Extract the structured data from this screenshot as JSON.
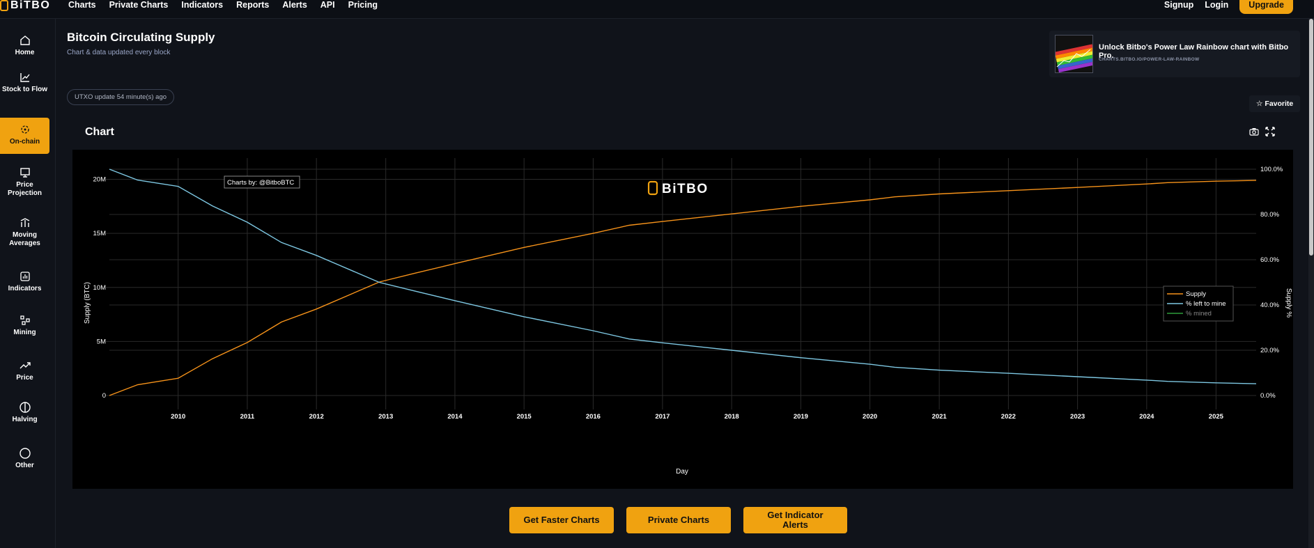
{
  "brand": {
    "name": "BiTBO",
    "accent": "#f0a210"
  },
  "nav": {
    "items": [
      "Charts",
      "Private Charts",
      "Indicators",
      "Reports",
      "Alerts",
      "API",
      "Pricing"
    ]
  },
  "auth": {
    "signup": "Signup",
    "login": "Login",
    "upgrade": "Upgrade"
  },
  "sidebar": {
    "items": [
      {
        "label": "Home",
        "icon": "home-icon"
      },
      {
        "label": "Stock to Flow",
        "icon": "line-chart-icon"
      },
      {
        "label": "On-chain",
        "icon": "network-icon",
        "active": true
      },
      {
        "label": "Price Projection",
        "icon": "presentation-icon"
      },
      {
        "label": "Moving Averages",
        "icon": "moving-averages-icon"
      },
      {
        "label": "Indicators",
        "icon": "bar-chart-icon"
      },
      {
        "label": "Mining",
        "icon": "mining-icon"
      },
      {
        "label": "Price",
        "icon": "trending-up-icon"
      },
      {
        "label": "Halving",
        "icon": "halving-icon"
      },
      {
        "label": "Other",
        "icon": "circle-icon"
      }
    ]
  },
  "page": {
    "title": "Bitcoin Circulating Supply",
    "subtitle": "Chart & data updated every block",
    "utxo_status": "UTXO update 54 minute(s) ago",
    "favorite": "Favorite",
    "chart_heading": "Chart"
  },
  "promo": {
    "headline": "Unlock Bitbo's Power Law Rainbow chart with Bitbo Pro.",
    "url": "CHARTS.BITBO.IO/POWER-LAW-RAINBOW"
  },
  "cta": {
    "faster": "Get Faster Charts",
    "private": "Private Charts",
    "alerts": "Get Indicator Alerts"
  },
  "chart_data": {
    "type": "line",
    "credit": "Charts by: @BitboBTC",
    "watermark": "BiTBO",
    "xlabel": "Day",
    "ylabel": "Supply (BTC)",
    "y2label": "Supply %",
    "xlim": [
      "2009-01-03",
      "2025-08-01"
    ],
    "ylim": [
      0,
      21000000
    ],
    "y2lim": [
      0,
      100
    ],
    "x_ticks": [
      "2010",
      "2011",
      "2012",
      "2013",
      "2014",
      "2015",
      "2016",
      "2017",
      "2018",
      "2019",
      "2020",
      "2021",
      "2022",
      "2023",
      "2024",
      "2025"
    ],
    "y_ticks": [
      {
        "v": 0,
        "l": "0"
      },
      {
        "v": 5000000,
        "l": "5M"
      },
      {
        "v": 10000000,
        "l": "10M"
      },
      {
        "v": 15000000,
        "l": "15M"
      },
      {
        "v": 20000000,
        "l": "20M"
      }
    ],
    "y2_ticks": [
      {
        "v": 0,
        "l": "0.0%"
      },
      {
        "v": 20,
        "l": "20.0%"
      },
      {
        "v": 40,
        "l": "40.0%"
      },
      {
        "v": 60,
        "l": "60.0%"
      },
      {
        "v": 80,
        "l": "80.0%"
      },
      {
        "v": 100,
        "l": "100.0%"
      }
    ],
    "legend_position": "right",
    "grid": true,
    "series": [
      {
        "name": "Supply",
        "axis": "left",
        "color": "#f7931a",
        "x": [
          "2009-01-03",
          "2009-06-01",
          "2010-01-01",
          "2010-07-01",
          "2011-01-01",
          "2011-07-01",
          "2012-01-01",
          "2012-11-28",
          "2013-06-01",
          "2014-01-01",
          "2015-01-01",
          "2016-01-01",
          "2016-07-09",
          "2017-01-01",
          "2018-01-01",
          "2019-01-01",
          "2020-01-01",
          "2020-05-11",
          "2021-01-01",
          "2022-01-01",
          "2023-01-01",
          "2024-01-01",
          "2024-04-20",
          "2025-01-01",
          "2025-08-01"
        ],
        "values": [
          0,
          1000000,
          1600000,
          3400000,
          4900000,
          6800000,
          8000000,
          10500000,
          11300000,
          12200000,
          13700000,
          15000000,
          15750000,
          16100000,
          16800000,
          17500000,
          18100000,
          18380000,
          18650000,
          18950000,
          19250000,
          19570000,
          19690000,
          19830000,
          19900000
        ]
      },
      {
        "name": "% left to mine",
        "axis": "right",
        "color": "#7ec8e3",
        "x": [
          "2009-01-03",
          "2009-06-01",
          "2010-01-01",
          "2010-07-01",
          "2011-01-01",
          "2011-07-01",
          "2012-01-01",
          "2012-11-28",
          "2013-06-01",
          "2014-01-01",
          "2015-01-01",
          "2016-01-01",
          "2016-07-09",
          "2017-01-01",
          "2018-01-01",
          "2019-01-01",
          "2020-01-01",
          "2020-05-11",
          "2021-01-01",
          "2022-01-01",
          "2023-01-01",
          "2024-01-01",
          "2024-04-20",
          "2025-01-01",
          "2025-08-01"
        ],
        "values": [
          100,
          95.2,
          92.4,
          83.8,
          76.6,
          67.6,
          61.9,
          50.0,
          46.2,
          41.9,
          34.8,
          28.6,
          25.0,
          23.3,
          20.0,
          16.7,
          13.8,
          12.5,
          11.2,
          9.8,
          8.3,
          6.8,
          6.25,
          5.6,
          5.2
        ]
      },
      {
        "name": "% mined",
        "axis": "right",
        "color": "#2e9e3a",
        "hidden": true
      }
    ]
  }
}
